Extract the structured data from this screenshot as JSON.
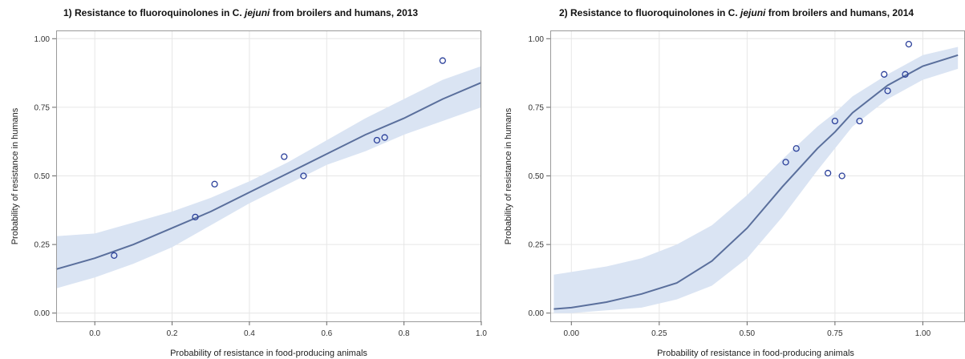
{
  "chart_data": [
    {
      "type": "line",
      "title": {
        "prefix": "1) Resistance to fluoroquinolones in C. ",
        "italic": "jejuni",
        "suffix": " from broilers and humans, 2013"
      },
      "xlabel": "Probability of resistance in food-producing animals",
      "ylabel": "Probability of resistance in humans",
      "xlim": [
        -0.1,
        1.0
      ],
      "ylim": [
        -0.03,
        1.03
      ],
      "xticks": [
        0.0,
        0.2,
        0.4,
        0.6,
        0.8,
        1.0
      ],
      "xtick_labels": [
        "0.0",
        "0.2",
        "0.4",
        "0.6",
        "0.8",
        "1.0"
      ],
      "yticks": [
        0.0,
        0.25,
        0.5,
        0.75,
        1.0
      ],
      "ytick_labels": [
        "0.00",
        "0.25",
        "0.50",
        "0.75",
        "1.00"
      ],
      "grid": true,
      "series": [
        {
          "kind": "fit",
          "x": [
            -0.1,
            0.0,
            0.1,
            0.2,
            0.3,
            0.4,
            0.5,
            0.6,
            0.7,
            0.8,
            0.9,
            1.0
          ],
          "y": [
            0.16,
            0.2,
            0.25,
            0.31,
            0.37,
            0.44,
            0.51,
            0.58,
            0.65,
            0.71,
            0.78,
            0.84
          ]
        },
        {
          "kind": "ci",
          "x": [
            -0.1,
            0.0,
            0.1,
            0.2,
            0.3,
            0.4,
            0.5,
            0.6,
            0.7,
            0.8,
            0.9,
            1.0
          ],
          "lower": [
            0.09,
            0.13,
            0.18,
            0.24,
            0.32,
            0.4,
            0.47,
            0.54,
            0.59,
            0.65,
            0.7,
            0.75
          ],
          "upper": [
            0.28,
            0.29,
            0.33,
            0.37,
            0.42,
            0.48,
            0.55,
            0.63,
            0.71,
            0.78,
            0.85,
            0.9
          ]
        },
        {
          "kind": "observed",
          "x": [
            0.05,
            0.26,
            0.31,
            0.49,
            0.54,
            0.73,
            0.75,
            0.9
          ],
          "y": [
            0.21,
            0.35,
            0.47,
            0.57,
            0.5,
            0.63,
            0.64,
            0.92
          ]
        }
      ]
    },
    {
      "type": "line",
      "title": {
        "prefix": "2) Resistance to fluoroquinolones in C. ",
        "italic": "jejuni",
        "suffix": " from broilers and humans, 2014"
      },
      "xlabel": "Probability of resistance in food-producing animals",
      "ylabel": "Probability of resistance in humans",
      "xlim": [
        -0.06,
        1.12
      ],
      "ylim": [
        -0.03,
        1.03
      ],
      "xticks": [
        0.0,
        0.25,
        0.5,
        0.75,
        1.0
      ],
      "xtick_labels": [
        "0.00",
        "0.25",
        "0.50",
        "0.75",
        "1.00"
      ],
      "yticks": [
        0.0,
        0.25,
        0.5,
        0.75,
        1.0
      ],
      "ytick_labels": [
        "0.00",
        "0.25",
        "0.50",
        "0.75",
        "1.00"
      ],
      "grid": true,
      "series": [
        {
          "kind": "fit",
          "x": [
            -0.05,
            0.0,
            0.1,
            0.2,
            0.3,
            0.4,
            0.5,
            0.6,
            0.7,
            0.75,
            0.8,
            0.9,
            1.0,
            1.1
          ],
          "y": [
            0.015,
            0.02,
            0.04,
            0.07,
            0.11,
            0.19,
            0.31,
            0.46,
            0.6,
            0.66,
            0.73,
            0.83,
            0.9,
            0.94
          ]
        },
        {
          "kind": "ci",
          "x": [
            -0.05,
            0.0,
            0.1,
            0.2,
            0.3,
            0.4,
            0.5,
            0.6,
            0.7,
            0.75,
            0.8,
            0.9,
            1.0,
            1.1
          ],
          "lower": [
            0.0,
            0.0,
            0.01,
            0.02,
            0.05,
            0.1,
            0.2,
            0.35,
            0.52,
            0.6,
            0.68,
            0.78,
            0.85,
            0.89
          ],
          "upper": [
            0.14,
            0.15,
            0.17,
            0.2,
            0.25,
            0.32,
            0.43,
            0.56,
            0.68,
            0.73,
            0.79,
            0.87,
            0.94,
            0.97
          ]
        },
        {
          "kind": "observed",
          "x": [
            0.61,
            0.64,
            0.73,
            0.75,
            0.77,
            0.82,
            0.89,
            0.9,
            0.95,
            0.96
          ],
          "y": [
            0.55,
            0.6,
            0.51,
            0.7,
            0.5,
            0.7,
            0.87,
            0.81,
            0.87,
            0.98
          ]
        }
      ]
    }
  ],
  "colors": {
    "fit_line": "#5a6f9c",
    "ci_band": "#dae4f3",
    "points": "#2a3f9a",
    "grid": "#e6e6e6",
    "frame": "#9a9a9a"
  }
}
